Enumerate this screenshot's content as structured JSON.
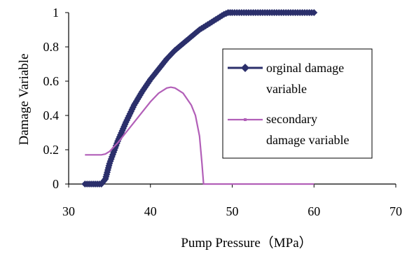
{
  "chart_data": {
    "type": "line",
    "title": "",
    "xlabel": "Pump Pressure（MPa）",
    "ylabel": "Damage Variable",
    "xlim": [
      30,
      70
    ],
    "ylim": [
      0,
      1
    ],
    "x_ticks": [
      "30",
      "40",
      "50",
      "60",
      "70"
    ],
    "y_ticks": [
      "0",
      "0.2",
      "0.4",
      "0.6",
      "0.8",
      "1"
    ],
    "x_tick_values": [
      30,
      40,
      50,
      60,
      70
    ],
    "y_tick_values": [
      0,
      0.2,
      0.4,
      0.6,
      0.8,
      1
    ],
    "grid": false,
    "legend_position": "right",
    "series": [
      {
        "name": "orginal damage variable",
        "color": "#2b2f6b",
        "marker": "diamond",
        "x": [
          32,
          33,
          34,
          34.5,
          35,
          36,
          37,
          38,
          39,
          40,
          41,
          42,
          43,
          44,
          45,
          46,
          47,
          48,
          49,
          49.5,
          50,
          52,
          54,
          56,
          58,
          60
        ],
        "y": [
          0,
          0,
          0,
          0.03,
          0.12,
          0.25,
          0.36,
          0.46,
          0.54,
          0.61,
          0.67,
          0.73,
          0.78,
          0.82,
          0.86,
          0.9,
          0.93,
          0.96,
          0.99,
          1,
          1,
          1,
          1,
          1,
          1,
          1
        ]
      },
      {
        "name": "secondary damage variable",
        "color": "#b25fb8",
        "marker": "small-dash",
        "x": [
          32,
          33,
          34,
          34.5,
          35,
          36,
          37,
          38,
          39,
          40,
          41,
          42,
          42.5,
          43,
          44,
          45,
          45.5,
          46,
          46.3,
          46.5,
          47,
          50,
          55,
          60
        ],
        "y": [
          0.17,
          0.17,
          0.17,
          0.175,
          0.19,
          0.24,
          0.3,
          0.36,
          0.42,
          0.48,
          0.53,
          0.56,
          0.565,
          0.56,
          0.53,
          0.46,
          0.4,
          0.28,
          0.12,
          0.0,
          0.0,
          0.0,
          0.0,
          0.0
        ]
      }
    ]
  }
}
